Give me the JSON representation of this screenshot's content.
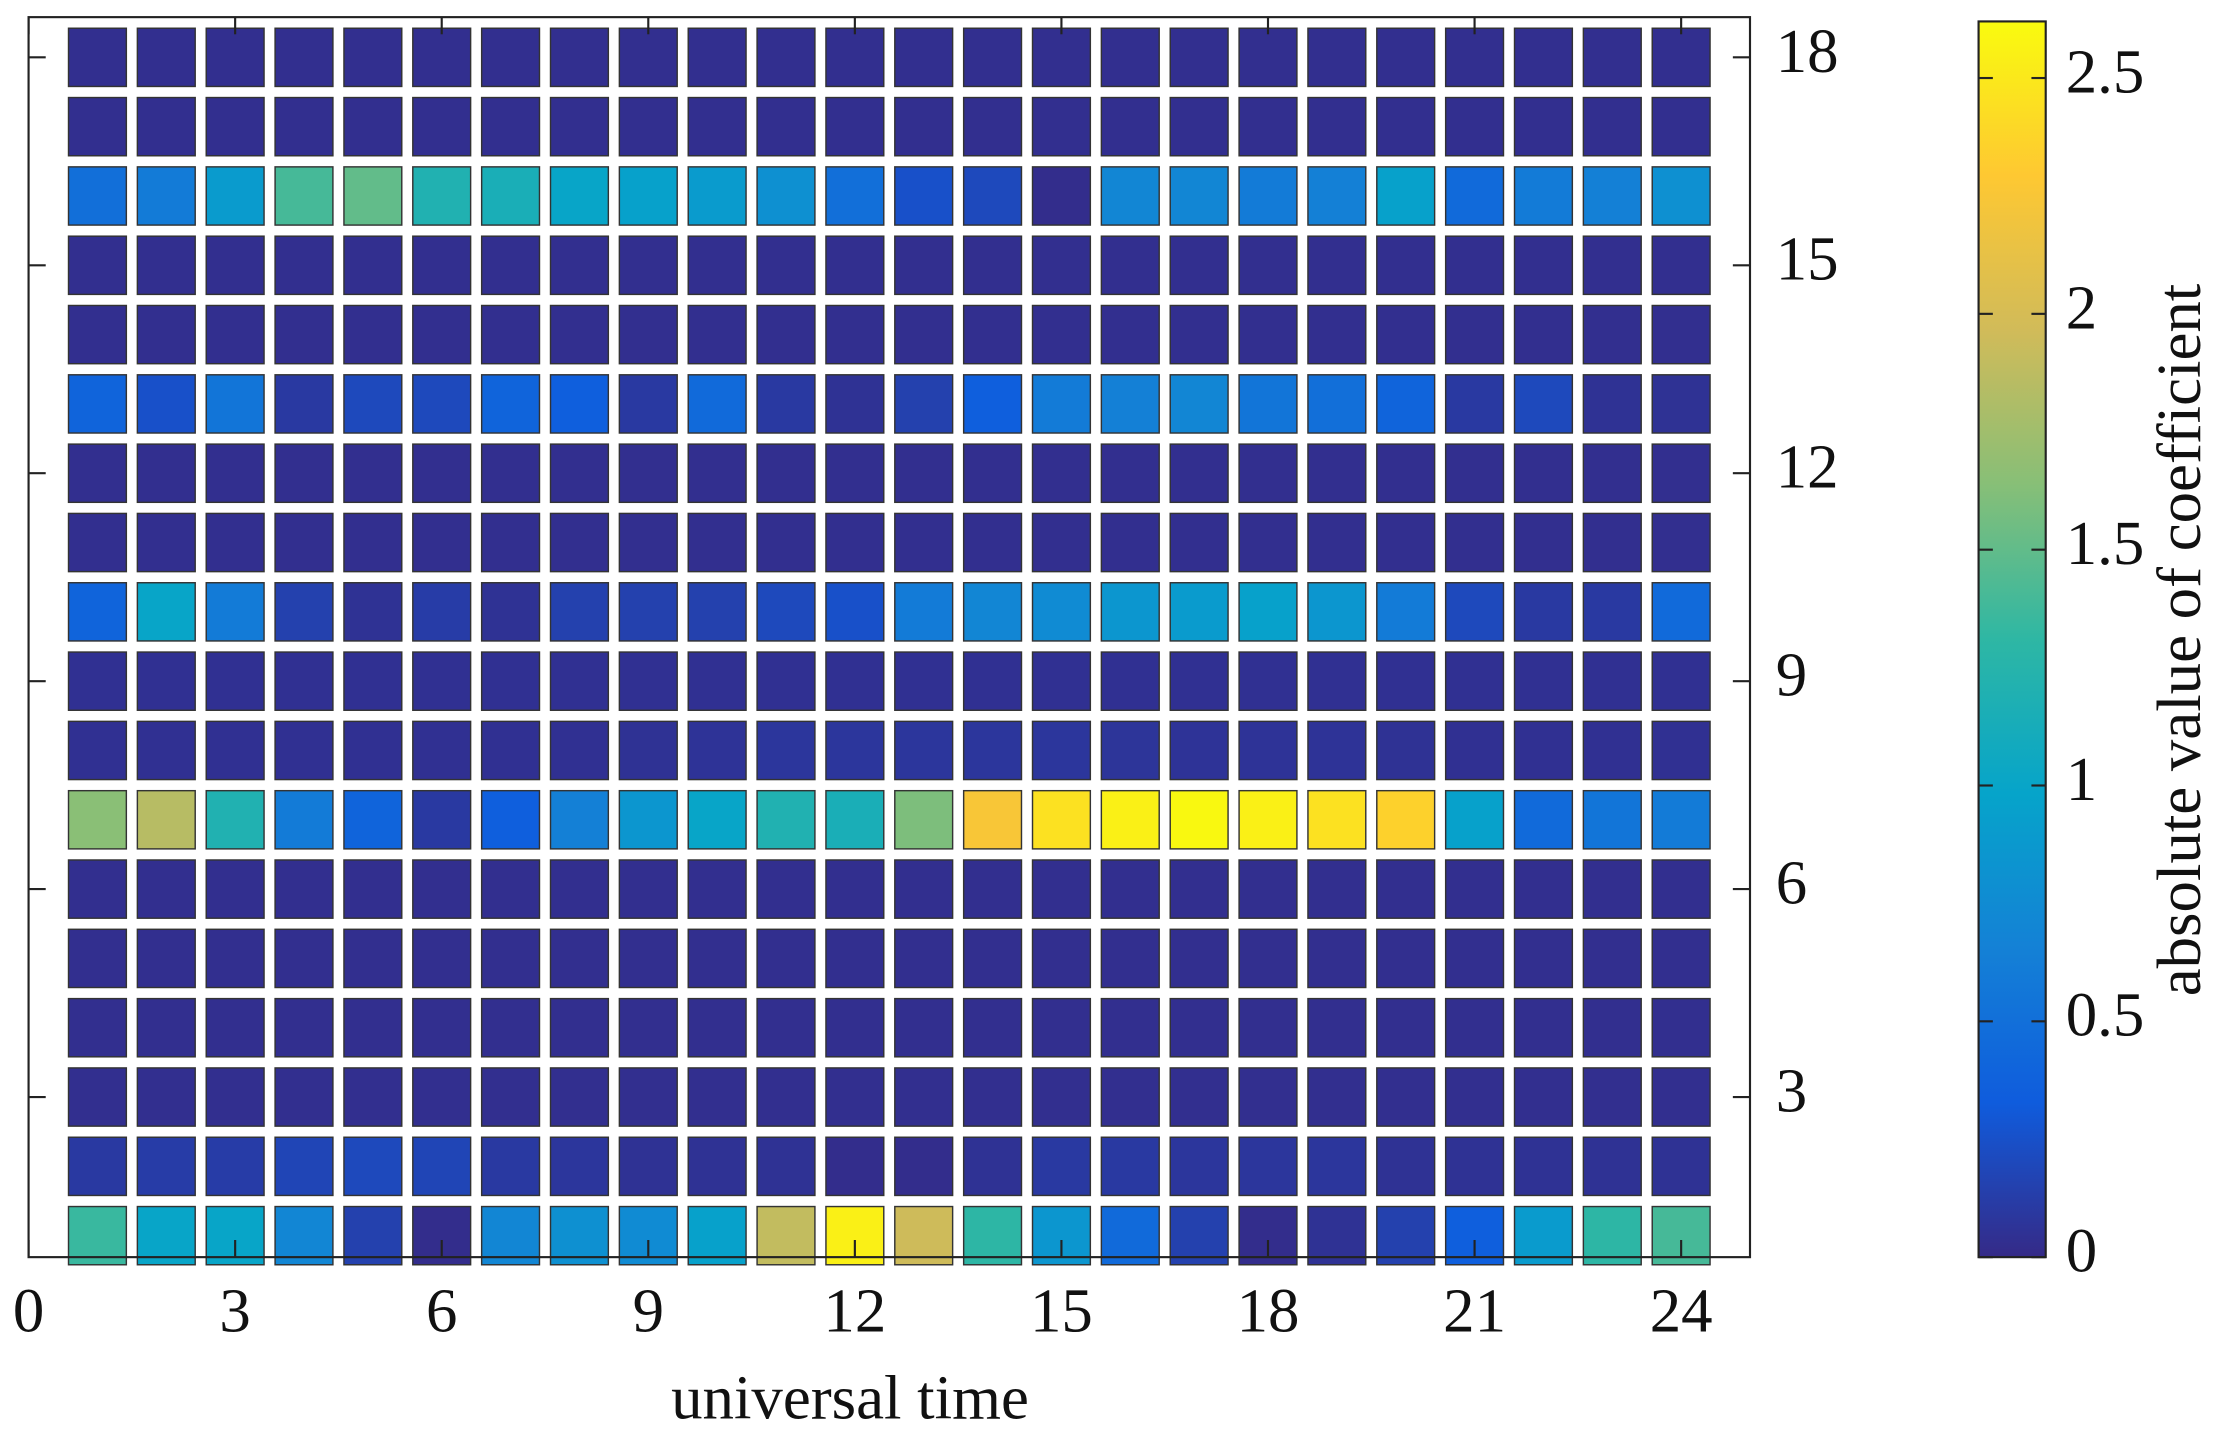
{
  "chart_data": {
    "type": "heatmap",
    "x_label": "universal time",
    "colorbar_label": "absolute value of coefficient",
    "x": [
      1,
      2,
      3,
      4,
      5,
      6,
      7,
      8,
      9,
      10,
      11,
      12,
      13,
      14,
      15,
      16,
      17,
      18,
      19,
      20,
      21,
      22,
      23,
      24
    ],
    "y": [
      1,
      2,
      3,
      4,
      5,
      6,
      7,
      8,
      9,
      10,
      11,
      12,
      13,
      14,
      15,
      16,
      17,
      18
    ],
    "z": [
      [
        1.35,
        1.0,
        1.0,
        0.7,
        0.15,
        0.02,
        0.7,
        0.8,
        0.75,
        0.95,
        1.9,
        2.55,
        1.95,
        1.3,
        0.85,
        0.45,
        0.15,
        0.02,
        0.05,
        0.15,
        0.35,
        0.9,
        1.3,
        1.4
      ],
      [
        0.1,
        0.12,
        0.12,
        0.18,
        0.2,
        0.18,
        0.1,
        0.08,
        0.05,
        0.05,
        0.05,
        0.02,
        0.02,
        0.05,
        0.1,
        0.1,
        0.08,
        0.08,
        0.08,
        0.05,
        0.05,
        0.05,
        0.05,
        0.05
      ],
      [
        0.03,
        0.03,
        0.03,
        0.03,
        0.03,
        0.03,
        0.03,
        0.03,
        0.03,
        0.03,
        0.03,
        0.03,
        0.03,
        0.03,
        0.03,
        0.03,
        0.03,
        0.03,
        0.03,
        0.03,
        0.03,
        0.03,
        0.03,
        0.03
      ],
      [
        0.03,
        0.03,
        0.03,
        0.03,
        0.03,
        0.03,
        0.03,
        0.03,
        0.03,
        0.03,
        0.03,
        0.03,
        0.03,
        0.03,
        0.03,
        0.03,
        0.03,
        0.03,
        0.03,
        0.03,
        0.03,
        0.03,
        0.03,
        0.03
      ],
      [
        0.03,
        0.03,
        0.03,
        0.03,
        0.03,
        0.03,
        0.03,
        0.03,
        0.03,
        0.03,
        0.03,
        0.03,
        0.03,
        0.03,
        0.03,
        0.03,
        0.03,
        0.03,
        0.03,
        0.03,
        0.03,
        0.03,
        0.03,
        0.03
      ],
      [
        0.03,
        0.03,
        0.03,
        0.03,
        0.03,
        0.03,
        0.03,
        0.03,
        0.03,
        0.03,
        0.03,
        0.03,
        0.03,
        0.03,
        0.03,
        0.03,
        0.03,
        0.03,
        0.03,
        0.03,
        0.03,
        0.03,
        0.03,
        0.03
      ],
      [
        1.65,
        1.85,
        1.2,
        0.6,
        0.4,
        0.1,
        0.35,
        0.65,
        0.85,
        1.0,
        1.2,
        1.15,
        1.6,
        2.25,
        2.45,
        2.55,
        2.6,
        2.55,
        2.45,
        2.35,
        0.95,
        0.45,
        0.55,
        0.6
      ],
      [
        0.04,
        0.04,
        0.04,
        0.04,
        0.04,
        0.04,
        0.04,
        0.04,
        0.05,
        0.06,
        0.08,
        0.08,
        0.08,
        0.08,
        0.08,
        0.07,
        0.06,
        0.06,
        0.06,
        0.05,
        0.04,
        0.04,
        0.04,
        0.04
      ],
      [
        0.04,
        0.04,
        0.04,
        0.04,
        0.04,
        0.04,
        0.04,
        0.04,
        0.04,
        0.04,
        0.04,
        0.04,
        0.04,
        0.04,
        0.04,
        0.04,
        0.04,
        0.04,
        0.04,
        0.04,
        0.04,
        0.04,
        0.04,
        0.04
      ],
      [
        0.4,
        1.0,
        0.6,
        0.15,
        0.05,
        0.12,
        0.05,
        0.15,
        0.15,
        0.15,
        0.2,
        0.25,
        0.6,
        0.7,
        0.75,
        0.85,
        0.9,
        0.95,
        0.85,
        0.6,
        0.2,
        0.1,
        0.1,
        0.45
      ],
      [
        0.03,
        0.03,
        0.03,
        0.03,
        0.03,
        0.03,
        0.03,
        0.03,
        0.03,
        0.03,
        0.03,
        0.03,
        0.03,
        0.03,
        0.03,
        0.03,
        0.03,
        0.03,
        0.03,
        0.03,
        0.03,
        0.03,
        0.03,
        0.03
      ],
      [
        0.03,
        0.03,
        0.03,
        0.03,
        0.03,
        0.03,
        0.03,
        0.03,
        0.03,
        0.03,
        0.03,
        0.03,
        0.03,
        0.03,
        0.03,
        0.03,
        0.03,
        0.03,
        0.03,
        0.03,
        0.03,
        0.03,
        0.03,
        0.03
      ],
      [
        0.4,
        0.25,
        0.55,
        0.1,
        0.2,
        0.2,
        0.4,
        0.35,
        0.1,
        0.45,
        0.1,
        0.05,
        0.15,
        0.35,
        0.6,
        0.65,
        0.7,
        0.55,
        0.5,
        0.4,
        0.1,
        0.2,
        0.05,
        0.05
      ],
      [
        0.03,
        0.03,
        0.03,
        0.03,
        0.03,
        0.03,
        0.03,
        0.03,
        0.03,
        0.03,
        0.03,
        0.03,
        0.03,
        0.03,
        0.03,
        0.03,
        0.03,
        0.03,
        0.03,
        0.03,
        0.03,
        0.03,
        0.03,
        0.03
      ],
      [
        0.03,
        0.03,
        0.03,
        0.03,
        0.03,
        0.03,
        0.03,
        0.03,
        0.03,
        0.03,
        0.03,
        0.03,
        0.03,
        0.03,
        0.03,
        0.03,
        0.03,
        0.03,
        0.03,
        0.03,
        0.03,
        0.03,
        0.03,
        0.03
      ],
      [
        0.5,
        0.6,
        0.9,
        1.4,
        1.5,
        1.2,
        1.15,
        1.0,
        0.95,
        0.9,
        0.8,
        0.5,
        0.25,
        0.2,
        0.02,
        0.7,
        0.7,
        0.6,
        0.65,
        0.95,
        0.45,
        0.6,
        0.65,
        0.8
      ],
      [
        0.03,
        0.03,
        0.03,
        0.03,
        0.03,
        0.03,
        0.03,
        0.03,
        0.03,
        0.03,
        0.03,
        0.03,
        0.03,
        0.03,
        0.03,
        0.03,
        0.03,
        0.03,
        0.03,
        0.03,
        0.03,
        0.03,
        0.03,
        0.03
      ],
      [
        0.03,
        0.03,
        0.03,
        0.03,
        0.03,
        0.03,
        0.03,
        0.03,
        0.03,
        0.03,
        0.03,
        0.03,
        0.03,
        0.03,
        0.03,
        0.03,
        0.03,
        0.03,
        0.03,
        0.03,
        0.03,
        0.03,
        0.03,
        0.03
      ]
    ],
    "xlim": [
      0,
      25
    ],
    "xticks": [
      0,
      3,
      6,
      9,
      12,
      15,
      18,
      21,
      24
    ],
    "ylim": [
      0.69,
      18.58
    ],
    "yticks": [
      3,
      6,
      9,
      12,
      15,
      18
    ],
    "clim": [
      0,
      2.62
    ],
    "cticks": [
      0,
      0.5,
      1,
      1.5,
      2,
      2.5
    ],
    "colormap": [
      "#352a87",
      "#0f5cdd",
      "#1481d6",
      "#06a4ca",
      "#2eb7a4",
      "#87bf77",
      "#d1bb59",
      "#fec832",
      "#f9fb0e"
    ]
  }
}
